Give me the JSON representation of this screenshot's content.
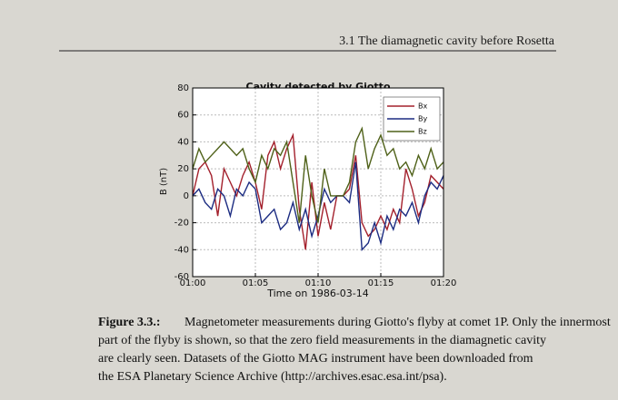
{
  "header": {
    "section": "3.1  The diamagnetic cavity before Rosetta"
  },
  "chart_data": {
    "type": "line",
    "title": "Cavity detected by Giotto",
    "x_label": "Time on 1986-03-14",
    "y_label": "B (nT)",
    "x": [
      60,
      60.5,
      61,
      61.5,
      62,
      62.5,
      63,
      63.5,
      64,
      64.5,
      65,
      65.5,
      66,
      66.5,
      67,
      67.5,
      68,
      68.5,
      69,
      69.5,
      70,
      70.5,
      71,
      71.5,
      72,
      72.5,
      73,
      73.5,
      74,
      74.5,
      75,
      75.5,
      76,
      76.5,
      77,
      77.5,
      78,
      78.5,
      79,
      79.5,
      80
    ],
    "series": [
      {
        "name": "Bx",
        "color": "#a3202c",
        "values": [
          0,
          20,
          25,
          15,
          -15,
          20,
          10,
          0,
          15,
          25,
          10,
          -10,
          30,
          40,
          20,
          35,
          45,
          -10,
          -40,
          10,
          -30,
          -5,
          -25,
          0,
          0,
          5,
          30,
          -20,
          -30,
          -25,
          -15,
          -25,
          -10,
          -20,
          20,
          5,
          -15,
          -5,
          15,
          10,
          5
        ]
      },
      {
        "name": "By",
        "color": "#1c2c82",
        "values": [
          0,
          5,
          -5,
          -10,
          5,
          0,
          -15,
          5,
          0,
          10,
          5,
          -20,
          -15,
          -10,
          -25,
          -20,
          -5,
          -25,
          -10,
          -30,
          -15,
          5,
          -5,
          0,
          0,
          -5,
          25,
          -40,
          -35,
          -20,
          -35,
          -15,
          -25,
          -10,
          -15,
          -5,
          -20,
          0,
          10,
          5,
          15
        ]
      },
      {
        "name": "Bz",
        "color": "#4f6119",
        "values": [
          20,
          35,
          25,
          30,
          35,
          40,
          35,
          30,
          35,
          20,
          10,
          30,
          20,
          35,
          30,
          40,
          10,
          -20,
          30,
          0,
          -20,
          20,
          0,
          0,
          0,
          10,
          40,
          50,
          20,
          35,
          45,
          30,
          35,
          20,
          25,
          15,
          30,
          20,
          35,
          20,
          25
        ]
      }
    ],
    "xlim": [
      60,
      80
    ],
    "xticks": [
      {
        "value": 60,
        "label": "01:00"
      },
      {
        "value": 65,
        "label": "01:05"
      },
      {
        "value": 70,
        "label": "01:10"
      },
      {
        "value": 75,
        "label": "01:15"
      },
      {
        "value": 80,
        "label": "01:20"
      }
    ],
    "ylim": [
      -60,
      80
    ],
    "yticks": [
      -60,
      -40,
      -20,
      0,
      20,
      40,
      60,
      80
    ],
    "grid": true,
    "legend": "upper right"
  },
  "caption": {
    "label": "Figure 3.3.:",
    "lines": [
      "Magnetometer measurements during Giotto's flyby at comet 1P. Only the innermost",
      "part of the flyby is shown, so that the zero field measurements in the diamagnetic cavity",
      "are clearly seen. Datasets of the Giotto MAG instrument have been downloaded from",
      "the ESA Planetary Science Archive (http://archives.esac.esa.int/psa)."
    ]
  }
}
